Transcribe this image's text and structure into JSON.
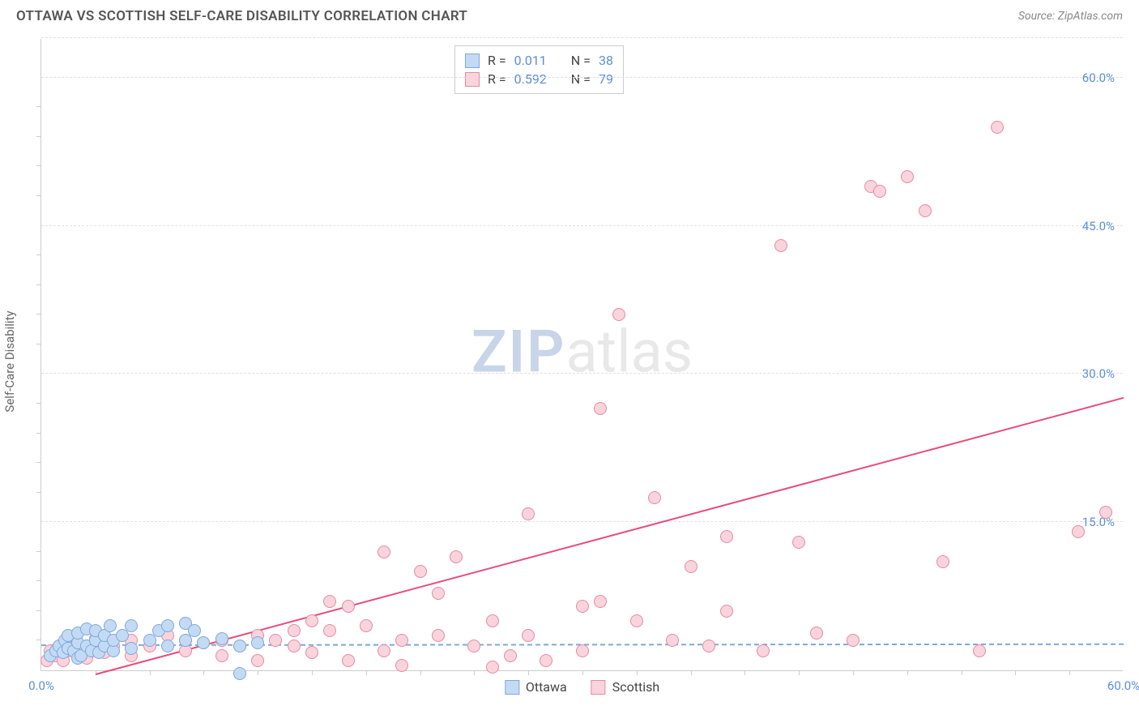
{
  "title": "OTTAWA VS SCOTTISH SELF-CARE DISABILITY CORRELATION CHART",
  "source": "Source: ZipAtlas.com",
  "y_axis_label": "Self-Care Disability",
  "watermark": {
    "part1": "ZIP",
    "part2": "atlas"
  },
  "chart": {
    "type": "scatter",
    "xlim": [
      0,
      60
    ],
    "ylim": [
      0,
      64
    ],
    "x_tick_labels": [
      {
        "pos": 0,
        "label": "0.0%"
      },
      {
        "pos": 60,
        "label": "60.0%"
      }
    ],
    "y_tick_labels": [
      {
        "pos": 15,
        "label": "15.0%"
      },
      {
        "pos": 30,
        "label": "30.0%"
      },
      {
        "pos": 45,
        "label": "45.0%"
      },
      {
        "pos": 60,
        "label": "60.0%"
      }
    ],
    "x_minor_ticks": [
      3,
      6,
      9,
      12,
      15,
      18,
      21,
      24,
      27,
      30,
      33,
      36,
      39,
      42,
      45,
      48,
      51,
      54,
      57
    ],
    "y_minor_ticks": [
      3,
      6,
      9,
      12,
      18,
      21,
      24,
      27,
      33,
      36,
      39,
      42,
      48,
      51,
      54,
      57
    ],
    "gridlines_y": [
      15,
      30,
      45,
      60,
      64
    ],
    "background_color": "#ffffff",
    "grid_color": "#e0e0e0",
    "axis_color": "#cccccc",
    "marker_radius": 8,
    "marker_stroke_width": 1,
    "series": {
      "ottawa": {
        "label": "Ottawa",
        "fill": "#c3daf5",
        "stroke": "#7fa8d9",
        "R": "0.011",
        "N": "38",
        "trend": {
          "x1": 0,
          "y1": 2.5,
          "x2": 60,
          "y2": 2.6,
          "dashed": true
        },
        "points": [
          [
            0.5,
            1.5
          ],
          [
            0.8,
            2.0
          ],
          [
            1.0,
            2.5
          ],
          [
            1.2,
            1.8
          ],
          [
            1.3,
            3.0
          ],
          [
            1.5,
            2.2
          ],
          [
            1.5,
            3.5
          ],
          [
            1.8,
            2.0
          ],
          [
            2.0,
            1.2
          ],
          [
            2.0,
            2.8
          ],
          [
            2.0,
            3.8
          ],
          [
            2.2,
            1.5
          ],
          [
            2.5,
            2.5
          ],
          [
            2.5,
            4.2
          ],
          [
            2.8,
            2.0
          ],
          [
            3.0,
            3.0
          ],
          [
            3.0,
            4.0
          ],
          [
            3.2,
            1.8
          ],
          [
            3.5,
            2.5
          ],
          [
            3.5,
            3.5
          ],
          [
            3.8,
            4.5
          ],
          [
            4.0,
            2.0
          ],
          [
            4.0,
            3.0
          ],
          [
            4.5,
            3.5
          ],
          [
            5.0,
            2.2
          ],
          [
            5.0,
            4.5
          ],
          [
            6.0,
            3.0
          ],
          [
            6.5,
            4.0
          ],
          [
            7.0,
            2.5
          ],
          [
            7.0,
            4.5
          ],
          [
            8.0,
            3.0
          ],
          [
            8.0,
            4.8
          ],
          [
            8.5,
            4.0
          ],
          [
            9.0,
            2.8
          ],
          [
            10.0,
            3.2
          ],
          [
            11.0,
            2.5
          ],
          [
            11.0,
            -0.3
          ],
          [
            12.0,
            2.8
          ]
        ]
      },
      "scottish": {
        "label": "Scottish",
        "fill": "#f9d4dd",
        "stroke": "#e68aa3",
        "R": "0.592",
        "N": "79",
        "trend": {
          "x1": 3,
          "y1": -0.5,
          "x2": 60,
          "y2": 27.5,
          "dashed": false,
          "line_color": "#e84c7a"
        },
        "points": [
          [
            0.3,
            1.0
          ],
          [
            0.5,
            2.0
          ],
          [
            0.8,
            1.5
          ],
          [
            1.0,
            2.5
          ],
          [
            1.2,
            1.0
          ],
          [
            1.5,
            2.0
          ],
          [
            1.5,
            3.0
          ],
          [
            2.0,
            1.5
          ],
          [
            2.0,
            2.8
          ],
          [
            2.5,
            1.2
          ],
          [
            2.5,
            2.5
          ],
          [
            3.0,
            2.0
          ],
          [
            3.0,
            3.2
          ],
          [
            3.5,
            1.8
          ],
          [
            3.5,
            2.8
          ],
          [
            4.0,
            2.5
          ],
          [
            5.0,
            1.5
          ],
          [
            5.0,
            3.0
          ],
          [
            6.0,
            2.5
          ],
          [
            7.0,
            3.5
          ],
          [
            8.0,
            2.0
          ],
          [
            8.0,
            3.0
          ],
          [
            9.0,
            2.8
          ],
          [
            10.0,
            1.5
          ],
          [
            10.0,
            3.0
          ],
          [
            11.0,
            2.5
          ],
          [
            12.0,
            3.5
          ],
          [
            12.0,
            1.0
          ],
          [
            13.0,
            3.0
          ],
          [
            14.0,
            2.5
          ],
          [
            14.0,
            4.0
          ],
          [
            15.0,
            1.8
          ],
          [
            15.0,
            5.0
          ],
          [
            16.0,
            4.0
          ],
          [
            16.0,
            7.0
          ],
          [
            17.0,
            1.0
          ],
          [
            17.0,
            6.5
          ],
          [
            18.0,
            4.5
          ],
          [
            19.0,
            2.0
          ],
          [
            19.0,
            12.0
          ],
          [
            20.0,
            3.0
          ],
          [
            20.0,
            0.5
          ],
          [
            21.0,
            10.0
          ],
          [
            22.0,
            3.5
          ],
          [
            22.0,
            7.8
          ],
          [
            23.0,
            11.5
          ],
          [
            24.0,
            2.5
          ],
          [
            25.0,
            5.0
          ],
          [
            25.0,
            0.3
          ],
          [
            26.0,
            1.5
          ],
          [
            27.0,
            3.5
          ],
          [
            27.0,
            15.8
          ],
          [
            28.0,
            1.0
          ],
          [
            30.0,
            6.5
          ],
          [
            30.0,
            2.0
          ],
          [
            31.0,
            7.0
          ],
          [
            31.0,
            26.5
          ],
          [
            32.0,
            36.0
          ],
          [
            33.0,
            5.0
          ],
          [
            34.0,
            17.5
          ],
          [
            35.0,
            3.0
          ],
          [
            36.0,
            10.5
          ],
          [
            37.0,
            2.5
          ],
          [
            38.0,
            6.0
          ],
          [
            38.0,
            13.5
          ],
          [
            40.0,
            2.0
          ],
          [
            41.0,
            43.0
          ],
          [
            42.0,
            13.0
          ],
          [
            43.0,
            3.8
          ],
          [
            45.0,
            3.0
          ],
          [
            46.0,
            49.0
          ],
          [
            46.5,
            48.5
          ],
          [
            48.0,
            50.0
          ],
          [
            49.0,
            46.5
          ],
          [
            50.0,
            11.0
          ],
          [
            52.0,
            2.0
          ],
          [
            53.0,
            55.0
          ],
          [
            57.5,
            14.0
          ],
          [
            59.0,
            16.0
          ]
        ]
      }
    }
  },
  "stats_box": {
    "rows": [
      {
        "series": "ottawa",
        "r_label": "R =",
        "n_label": "N ="
      },
      {
        "series": "scottish",
        "r_label": "R =",
        "n_label": "N ="
      }
    ]
  },
  "colors": {
    "tick_label": "#5b8fd6",
    "axis_text": "#666666",
    "title_text": "#555555",
    "source_text": "#888888"
  }
}
